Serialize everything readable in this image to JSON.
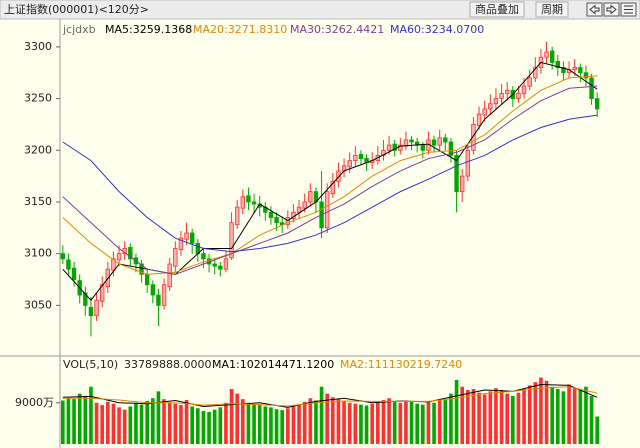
{
  "header": {
    "title": "上证指数(000001)<120分>",
    "buttons": [
      "商品叠加",
      "周期"
    ]
  },
  "chart_data": [
    {
      "type": "candlestick",
      "indicator": "jcjdxb",
      "candles": [
        [
          3100,
          3108,
          3090,
          3095
        ],
        [
          3094,
          3100,
          3078,
          3085
        ],
        [
          3086,
          3092,
          3068,
          3075
        ],
        [
          3074,
          3080,
          3052,
          3060
        ],
        [
          3062,
          3068,
          3040,
          3050
        ],
        [
          3048,
          3058,
          3020,
          3040
        ],
        [
          3040,
          3062,
          3035,
          3055
        ],
        [
          3054,
          3078,
          3048,
          3070
        ],
        [
          3068,
          3092,
          3062,
          3085
        ],
        [
          3084,
          3102,
          3078,
          3095
        ],
        [
          3094,
          3108,
          3088,
          3100
        ],
        [
          3100,
          3112,
          3094,
          3105
        ],
        [
          3106,
          3110,
          3088,
          3095
        ],
        [
          3096,
          3100,
          3082,
          3090
        ],
        [
          3090,
          3094,
          3072,
          3080
        ],
        [
          3080,
          3086,
          3062,
          3070
        ],
        [
          3070,
          3074,
          3052,
          3060
        ],
        [
          3060,
          3066,
          3030,
          3050
        ],
        [
          3050,
          3076,
          3046,
          3070
        ],
        [
          3068,
          3096,
          3064,
          3090
        ],
        [
          3088,
          3112,
          3082,
          3105
        ],
        [
          3104,
          3122,
          3098,
          3115
        ],
        [
          3114,
          3130,
          3108,
          3120
        ],
        [
          3120,
          3124,
          3100,
          3110
        ],
        [
          3110,
          3114,
          3092,
          3100
        ],
        [
          3100,
          3106,
          3086,
          3095
        ],
        [
          3095,
          3100,
          3082,
          3090
        ],
        [
          3090,
          3096,
          3080,
          3088
        ],
        [
          3088,
          3092,
          3078,
          3085
        ],
        [
          3085,
          3102,
          3082,
          3095
        ],
        [
          3096,
          3140,
          3094,
          3130
        ],
        [
          3128,
          3152,
          3124,
          3145
        ],
        [
          3144,
          3162,
          3138,
          3155
        ],
        [
          3156,
          3164,
          3142,
          3150
        ],
        [
          3150,
          3158,
          3140,
          3148
        ],
        [
          3148,
          3156,
          3136,
          3145
        ],
        [
          3145,
          3150,
          3132,
          3140
        ],
        [
          3140,
          3146,
          3128,
          3135
        ],
        [
          3135,
          3140,
          3122,
          3130
        ],
        [
          3130,
          3136,
          3120,
          3128
        ],
        [
          3128,
          3142,
          3124,
          3135
        ],
        [
          3134,
          3148,
          3130,
          3140
        ],
        [
          3140,
          3152,
          3134,
          3145
        ],
        [
          3144,
          3158,
          3140,
          3150
        ],
        [
          3150,
          3168,
          3146,
          3160
        ],
        [
          3160,
          3164,
          3140,
          3150
        ],
        [
          3150,
          3180,
          3115,
          3125
        ],
        [
          3125,
          3168,
          3120,
          3160
        ],
        [
          3158,
          3178,
          3154,
          3170
        ],
        [
          3170,
          3188,
          3164,
          3180
        ],
        [
          3180,
          3192,
          3174,
          3185
        ],
        [
          3184,
          3198,
          3178,
          3190
        ],
        [
          3190,
          3204,
          3184,
          3195
        ],
        [
          3196,
          3200,
          3186,
          3192
        ],
        [
          3192,
          3196,
          3180,
          3188
        ],
        [
          3188,
          3198,
          3182,
          3190
        ],
        [
          3190,
          3204,
          3186,
          3195
        ],
        [
          3195,
          3210,
          3190,
          3200
        ],
        [
          3200,
          3214,
          3196,
          3205
        ],
        [
          3206,
          3210,
          3194,
          3200
        ],
        [
          3200,
          3212,
          3196,
          3205
        ],
        [
          3204,
          3218,
          3200,
          3210
        ],
        [
          3210,
          3214,
          3200,
          3208
        ],
        [
          3208,
          3212,
          3198,
          3205
        ],
        [
          3205,
          3208,
          3192,
          3200
        ],
        [
          3200,
          3218,
          3196,
          3210
        ],
        [
          3210,
          3214,
          3198,
          3205
        ],
        [
          3205,
          3220,
          3200,
          3212
        ],
        [
          3212,
          3216,
          3200,
          3208
        ],
        [
          3208,
          3212,
          3188,
          3195
        ],
        [
          3195,
          3200,
          3140,
          3160
        ],
        [
          3160,
          3182,
          3150,
          3175
        ],
        [
          3175,
          3206,
          3170,
          3200
        ],
        [
          3200,
          3232,
          3196,
          3225
        ],
        [
          3224,
          3242,
          3220,
          3235
        ],
        [
          3234,
          3248,
          3228,
          3240
        ],
        [
          3240,
          3254,
          3234,
          3245
        ],
        [
          3245,
          3260,
          3240,
          3250
        ],
        [
          3250,
          3264,
          3244,
          3255
        ],
        [
          3255,
          3266,
          3248,
          3258
        ],
        [
          3258,
          3262,
          3242,
          3250
        ],
        [
          3250,
          3262,
          3246,
          3255
        ],
        [
          3255,
          3270,
          3250,
          3262
        ],
        [
          3262,
          3278,
          3258,
          3270
        ],
        [
          3270,
          3290,
          3266,
          3280
        ],
        [
          3280,
          3298,
          3274,
          3290
        ],
        [
          3290,
          3305,
          3284,
          3295
        ],
        [
          3296,
          3300,
          3278,
          3285
        ],
        [
          3286,
          3292,
          3272,
          3280
        ],
        [
          3280,
          3286,
          3268,
          3275
        ],
        [
          3275,
          3286,
          3270,
          3278
        ],
        [
          3278,
          3288,
          3272,
          3280
        ],
        [
          3280,
          3284,
          3266,
          3275
        ],
        [
          3275,
          3282,
          3262,
          3270
        ],
        [
          3270,
          3274,
          3244,
          3250
        ],
        [
          3250,
          3256,
          3232,
          3240
        ]
      ],
      "colors": {
        "up": "#ff3030",
        "down": "#00a800"
      },
      "ylim": [
        3002,
        3326
      ],
      "yticks": [
        3050,
        3100,
        3150,
        3200,
        3250,
        3300
      ],
      "ma_x": [
        0,
        5,
        10,
        15,
        20,
        25,
        30,
        35,
        40,
        45,
        50,
        55,
        60,
        65,
        70,
        75,
        80,
        85,
        90,
        95
      ],
      "series": [
        {
          "name": "MA5:3259.1368",
          "color": "#000000",
          "values": [
            3085,
            3055,
            3090,
            3085,
            3080,
            3105,
            3105,
            3148,
            3132,
            3150,
            3180,
            3190,
            3204,
            3206,
            3190,
            3230,
            3254,
            3285,
            3278,
            3259
          ]
        },
        {
          "name": "MA20:3271.8310",
          "color": "#e08a00",
          "values": [
            3135,
            3110,
            3090,
            3080,
            3082,
            3092,
            3100,
            3118,
            3130,
            3140,
            3155,
            3175,
            3190,
            3198,
            3200,
            3215,
            3238,
            3258,
            3270,
            3272
          ]
        },
        {
          "name": "MA30:3262.4421",
          "color": "#80408f",
          "values": [
            3155,
            3130,
            3105,
            3085,
            3080,
            3090,
            3100,
            3110,
            3120,
            3135,
            3148,
            3165,
            3180,
            3192,
            3198,
            3210,
            3230,
            3248,
            3260,
            3262
          ]
        },
        {
          "name": "MA60:3234.0700",
          "color": "#3333cc",
          "values": [
            3208,
            3190,
            3160,
            3135,
            3115,
            3105,
            3102,
            3105,
            3110,
            3118,
            3130,
            3145,
            3160,
            3172,
            3185,
            3195,
            3210,
            3222,
            3230,
            3234
          ]
        }
      ]
    },
    {
      "type": "bar",
      "title": "VOL(5,10)",
      "subtitle": "33789888.0000",
      "values": [
        9500,
        10000,
        9800,
        11000,
        10500,
        12500,
        9000,
        8500,
        9200,
        8800,
        8000,
        7500,
        8200,
        9000,
        8600,
        9400,
        10000,
        11500,
        9800,
        9000,
        8800,
        8500,
        9600,
        8200,
        7800,
        7200,
        7000,
        7500,
        8000,
        9000,
        12000,
        11000,
        9800,
        9000,
        8700,
        8500,
        8200,
        8000,
        7600,
        7400,
        7800,
        8200,
        8600,
        9200,
        10000,
        9500,
        12500,
        11000,
        10200,
        9800,
        9400,
        9000,
        8800,
        8600,
        8400,
        8800,
        9200,
        9600,
        10000,
        9400,
        9000,
        9500,
        9200,
        8800,
        8600,
        9400,
        9000,
        9800,
        9600,
        11000,
        14000,
        12500,
        11800,
        12000,
        11200,
        10800,
        11500,
        12200,
        11800,
        11000,
        10500,
        11200,
        12000,
        12800,
        13500,
        14500,
        13800,
        12500,
        12000,
        11500,
        13000,
        12200,
        11800,
        12500,
        10500,
        6000
      ],
      "ylim": [
        0,
        19000
      ],
      "yticks": [
        {
          "value": 9000,
          "label": "9000万"
        }
      ],
      "ma_x": [
        0,
        5,
        10,
        15,
        20,
        25,
        30,
        35,
        40,
        45,
        50,
        55,
        60,
        65,
        70,
        75,
        80,
        85,
        90,
        95
      ],
      "series": [
        {
          "name": "MA1:102014471.1200",
          "color": "#000000",
          "values": [
            10200,
            10400,
            9000,
            8800,
            9500,
            8200,
            8600,
            9000,
            8000,
            9300,
            10000,
            9000,
            9400,
            9200,
            10500,
            11800,
            11500,
            13000,
            12800,
            10200
          ]
        },
        {
          "name": "MA2:111130219.7240",
          "color": "#e08a00",
          "values": [
            10000,
            10000,
            9600,
            9000,
            9000,
            8500,
            8800,
            8600,
            8300,
            9000,
            9400,
            9300,
            9300,
            9300,
            10000,
            11000,
            11500,
            12200,
            12500,
            11100
          ]
        }
      ]
    }
  ]
}
